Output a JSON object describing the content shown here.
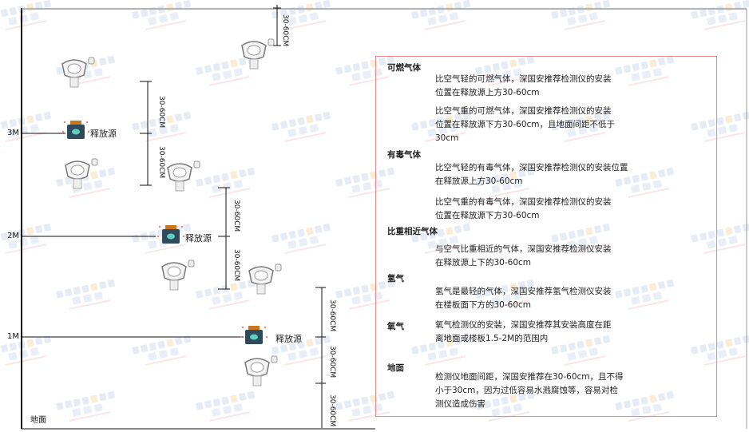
{
  "watermark": {
    "brand": "SINGOAN",
    "cn": "深国安"
  },
  "floors": {
    "f3": "3M",
    "f2": "2M",
    "f1": "1M",
    "ground": "地面"
  },
  "source_label": "释放源",
  "dimension_label": "30-60CM",
  "notes": [
    {
      "title": "可燃气体",
      "items": [
        "比空气轻的可燃气体，深国安推荐检测仪的安装\n位置在释放源上方30-60cm",
        "比空气重的可燃气体，深国安推荐检测仪的安装\n位置在释放源下方30-60cm，且地面间距不低于\n30cm"
      ]
    },
    {
      "title": "有毒气体",
      "items": [
        "比空气轻的有毒气体，深国安推荐检测仪的安装位置\n在释放源上方30-60cm",
        "比空气重的有毒气体，深国安推荐检测仪的安装\n位置在释放源下方30-60cm"
      ]
    },
    {
      "title": "比重相近气体",
      "items": [
        "与空气比重相近的气体，深国安推荐检测仪安装\n在释放源上下的30-60cm"
      ]
    },
    {
      "title": "氢气",
      "items": [
        "氢气是最轻的气体，深国安推荐氢气检测仪安装\n在楼板面下方的30-60cm"
      ]
    },
    {
      "title": "氧气",
      "items": [
        "氧气检测仪的安装，深国安推荐其安装高度在距\n离地面或楼板1.5-2M的范围内"
      ]
    },
    {
      "title": "地面",
      "items": [
        "检测仪地面间距，深国安推荐在30-60cm，且不得\n小于30cm，因为过低容易水溅腐蚀等，容易对检\n测仪造成伤害"
      ]
    }
  ],
  "colors": {
    "box_border": "#e48a8a",
    "source_body": "#2f4a5a",
    "source_cap": "#c9761e",
    "source_glyph": "#5ed0c0"
  }
}
